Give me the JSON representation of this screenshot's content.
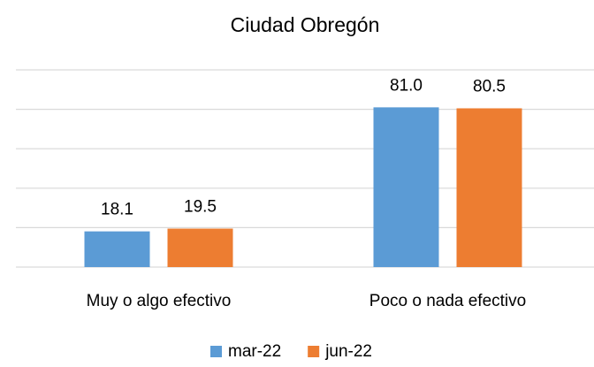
{
  "chart_data": {
    "type": "bar",
    "title": "Ciudad Obregón",
    "categories": [
      "Muy o algo efectivo",
      "Poco o nada efectivo"
    ],
    "series": [
      {
        "name": "mar-22",
        "color": "#5b9bd5",
        "values": [
          18.1,
          81.0
        ],
        "value_labels": [
          "18.1",
          "81.0"
        ]
      },
      {
        "name": "jun-22",
        "color": "#ed7d31",
        "values": [
          19.5,
          80.5
        ],
        "value_labels": [
          "19.5",
          "80.5"
        ]
      }
    ],
    "ylim": [
      0,
      100
    ],
    "yticks": [
      0,
      20,
      40,
      60,
      80,
      100
    ],
    "grid": true,
    "legend": "bottom"
  }
}
